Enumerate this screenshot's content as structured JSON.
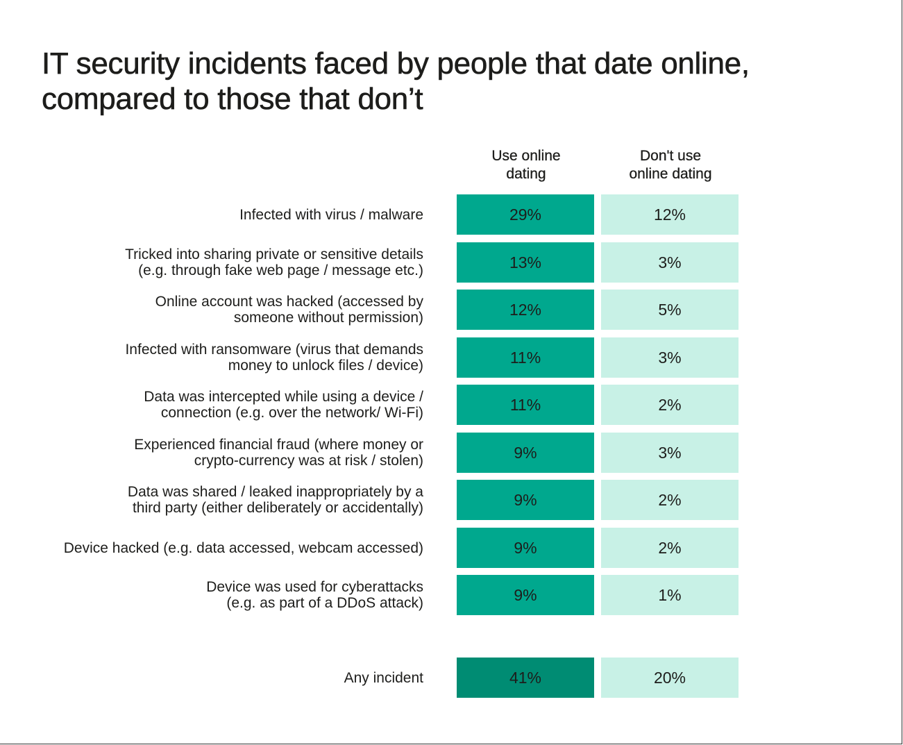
{
  "title": "IT security incidents faced by people that date online,\ncompared to those that don’t",
  "chart_data": {
    "type": "table",
    "columns": [
      "Use online\ndating",
      "Don't use\nonline dating"
    ],
    "colors": {
      "use_fill": "#00a88e",
      "dont_use_fill": "#c8f1e6",
      "total_use_fill": "#008c73"
    },
    "rows": [
      {
        "label": "Infected with virus / malware",
        "use": "29%",
        "dont_use": "12%"
      },
      {
        "label": "Tricked into sharing private or sensitive details\n(e.g. through fake web page / message etc.)",
        "use": "13%",
        "dont_use": "3%"
      },
      {
        "label": "Online account was hacked (accessed by\nsomeone without permission)",
        "use": "12%",
        "dont_use": "5%"
      },
      {
        "label": "Infected with ransomware (virus that demands\nmoney to unlock files / device)",
        "use": "11%",
        "dont_use": "3%"
      },
      {
        "label": "Data was intercepted while using a device /\nconnection (e.g. over the network/ Wi-Fi)",
        "use": "11%",
        "dont_use": "2%"
      },
      {
        "label": "Experienced financial fraud (where money or\ncrypto-currency was at risk / stolen)",
        "use": "9%",
        "dont_use": "3%"
      },
      {
        "label": "Data was shared / leaked inappropriately by a\nthird party (either deliberately or accidentally)",
        "use": "9%",
        "dont_use": "2%"
      },
      {
        "label": "Device hacked (e.g. data accessed, webcam accessed)",
        "use": "9%",
        "dont_use": "2%"
      },
      {
        "label": "Device was used for cyberattacks\n(e.g. as part of a DDoS attack)",
        "use": "9%",
        "dont_use": "1%"
      }
    ],
    "total": {
      "label": "Any incident",
      "use": "41%",
      "dont_use": "20%"
    }
  }
}
